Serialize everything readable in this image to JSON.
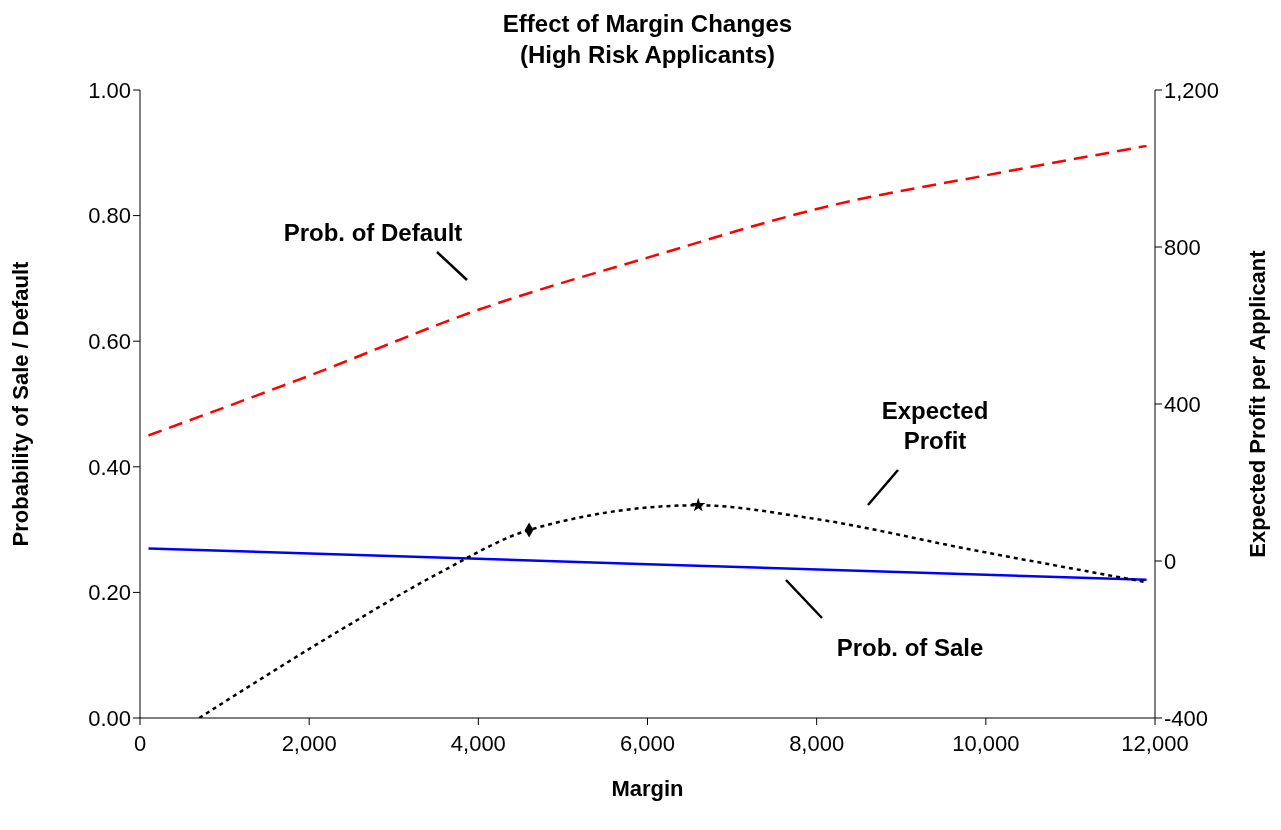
{
  "chart_data": {
    "type": "line",
    "title": "Effect of Margin Changes\n(High Risk Applicants)",
    "xlabel": "Margin",
    "ylabel": "Probability of Sale / Default",
    "y2label": "Expected Profit per Applicant",
    "series": [
      {
        "name": "Prob. of Default",
        "color": "#ff0000",
        "line_style": "dashed",
        "x": [
          100,
          2000,
          4000,
          6000,
          8200,
          10000,
          11900
        ],
        "values": [
          0.45,
          0.545,
          0.65,
          0.733,
          0.817,
          0.864,
          0.911
        ]
      },
      {
        "name": "Prob. of Sale",
        "color": "#0000ff",
        "line_style": "solid",
        "x": [
          100,
          6000,
          11900
        ],
        "values": [
          0.27,
          0.245,
          0.22
        ]
      },
      {
        "name": "Expected Profit",
        "color": "#000000",
        "line_style": "dotted",
        "axis": "y2",
        "x": [
          700,
          2400,
          3550,
          4600,
          6600,
          7900,
          9850,
          11900
        ],
        "values": [
          -400,
          -172,
          -29,
          79,
          142,
          110,
          28,
          -54
        ]
      },
      {
        "type": "scatter",
        "color": "#000000",
        "marker": "diamond",
        "axis": "y2",
        "x": [
          4600
        ],
        "values": [
          79
        ]
      },
      {
        "type": "scatter",
        "color": "#000000",
        "marker": "star",
        "axis": "y2",
        "x": [
          6600
        ],
        "values": [
          142
        ]
      }
    ],
    "xlim": [
      0,
      12000
    ],
    "xticks": [
      0,
      {
        "value": 2000,
        "label": "2,000"
      },
      {
        "value": 4000,
        "label": "4,000"
      },
      {
        "value": 6000,
        "label": "6,000"
      },
      {
        "value": 8000,
        "label": "8,000"
      },
      {
        "value": 10000,
        "label": "10,000"
      },
      {
        "value": 12000,
        "label": "12,000"
      }
    ],
    "ylim": [
      0,
      1
    ],
    "yticks": [
      {
        "value": 0,
        "label": "0.00"
      },
      {
        "value": 0.2,
        "label": "0.20"
      },
      {
        "value": 0.4,
        "label": "0.40"
      },
      {
        "value": 0.6,
        "label": "0.60"
      },
      {
        "value": 0.8,
        "label": "0.80"
      },
      {
        "value": 1,
        "label": "1.00"
      }
    ],
    "y2lim": [
      -400,
      1200
    ],
    "y2ticks": [
      -400,
      0,
      400,
      800,
      {
        "value": 1200,
        "label": "1,200"
      }
    ],
    "grid": false
  }
}
